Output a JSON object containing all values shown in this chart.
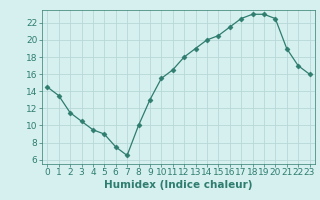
{
  "x": [
    0,
    1,
    2,
    3,
    4,
    5,
    6,
    7,
    8,
    9,
    10,
    11,
    12,
    13,
    14,
    15,
    16,
    17,
    18,
    19,
    20,
    21,
    22,
    23
  ],
  "y": [
    14.5,
    13.5,
    11.5,
    10.5,
    9.5,
    9.0,
    7.5,
    6.5,
    10.0,
    13.0,
    15.5,
    16.5,
    18.0,
    19.0,
    20.0,
    20.5,
    21.5,
    22.5,
    23.0,
    23.0,
    22.5,
    19.0,
    17.0,
    16.0
  ],
  "line_color": "#2e7d6e",
  "marker": "D",
  "marker_size": 2.5,
  "bg_color": "#d6f0f0",
  "grid_color": "#b8d8d8",
  "xlabel": "Humidex (Indice chaleur)",
  "xlim": [
    -0.5,
    23.5
  ],
  "ylim": [
    5.5,
    23.5
  ],
  "yticks": [
    6,
    8,
    10,
    12,
    14,
    16,
    18,
    20,
    22
  ],
  "xticks": [
    0,
    1,
    2,
    3,
    4,
    5,
    6,
    7,
    8,
    9,
    10,
    11,
    12,
    13,
    14,
    15,
    16,
    17,
    18,
    19,
    20,
    21,
    22,
    23
  ],
  "tick_fontsize": 6.5,
  "xlabel_fontsize": 7.5
}
